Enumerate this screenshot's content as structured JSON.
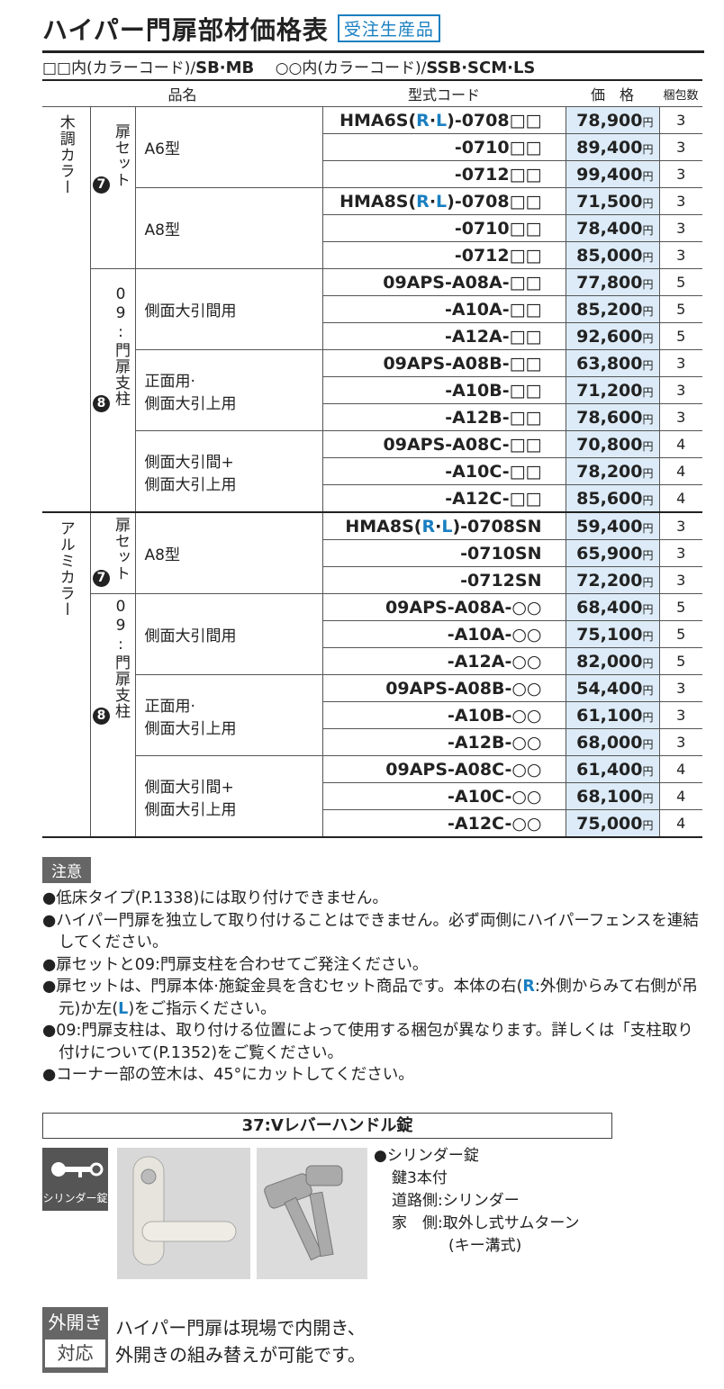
{
  "header": {
    "title": "ハイパー門扉部材価格表",
    "badge": "受注生産品"
  },
  "color_codes": [
    {
      "text": "□□内(カラーコード)/",
      "codes": "SB·MB"
    },
    {
      "text": "○○内(カラーコード)/",
      "codes": "SSB·SCM·LS"
    }
  ],
  "table": {
    "columns": {
      "name": "品名",
      "code": "型式コード",
      "price": "価　格",
      "pack": "梱包数"
    },
    "currency_unit": "円",
    "groups": [
      {
        "label": "木調カラー",
        "subgroups": [
          {
            "badge": "7",
            "label": "扉セット",
            "items": [
              {
                "name": [
                  "A6型"
                ],
                "rows": [
                  {
                    "code": [
                      "HMA6S(",
                      "R",
                      "·",
                      "L",
                      ")-0708□□"
                    ],
                    "price": "78,900",
                    "pack": "3"
                  },
                  {
                    "code": [
                      "-0710□□"
                    ],
                    "price": "89,400",
                    "pack": "3"
                  },
                  {
                    "code": [
                      "-0712□□"
                    ],
                    "price": "99,400",
                    "pack": "3"
                  }
                ]
              },
              {
                "name": [
                  "A8型"
                ],
                "rows": [
                  {
                    "code": [
                      "HMA8S(",
                      "R",
                      "·",
                      "L",
                      ")-0708□□"
                    ],
                    "price": "71,500",
                    "pack": "3"
                  },
                  {
                    "code": [
                      "-0710□□"
                    ],
                    "price": "78,400",
                    "pack": "3"
                  },
                  {
                    "code": [
                      "-0712□□"
                    ],
                    "price": "85,000",
                    "pack": "3"
                  }
                ]
              }
            ]
          },
          {
            "badge": "8",
            "label": "09:門扉支柱",
            "items": [
              {
                "name": [
                  "側面大引間用"
                ],
                "rows": [
                  {
                    "code": [
                      "09APS-A08A-□□"
                    ],
                    "price": "77,800",
                    "pack": "5"
                  },
                  {
                    "code": [
                      "-A10A-□□"
                    ],
                    "price": "85,200",
                    "pack": "5"
                  },
                  {
                    "code": [
                      "-A12A-□□"
                    ],
                    "price": "92,600",
                    "pack": "5"
                  }
                ]
              },
              {
                "name": [
                  "正面用·",
                  "側面大引上用"
                ],
                "rows": [
                  {
                    "code": [
                      "09APS-A08B-□□"
                    ],
                    "price": "63,800",
                    "pack": "3"
                  },
                  {
                    "code": [
                      "-A10B-□□"
                    ],
                    "price": "71,200",
                    "pack": "3"
                  },
                  {
                    "code": [
                      "-A12B-□□"
                    ],
                    "price": "78,600",
                    "pack": "3"
                  }
                ]
              },
              {
                "name": [
                  "側面大引間+",
                  "側面大引上用"
                ],
                "rows": [
                  {
                    "code": [
                      "09APS-A08C-□□"
                    ],
                    "price": "70,800",
                    "pack": "4"
                  },
                  {
                    "code": [
                      "-A10C-□□"
                    ],
                    "price": "78,200",
                    "pack": "4"
                  },
                  {
                    "code": [
                      "-A12C-□□"
                    ],
                    "price": "85,600",
                    "pack": "4"
                  }
                ]
              }
            ]
          }
        ]
      },
      {
        "label": "アルミカラー",
        "subgroups": [
          {
            "badge": "7",
            "label": "扉セット",
            "items": [
              {
                "name": [
                  "A8型"
                ],
                "rows": [
                  {
                    "code": [
                      "HMA8S(",
                      "R",
                      "·",
                      "L",
                      ")-0708SN"
                    ],
                    "price": "59,400",
                    "pack": "3"
                  },
                  {
                    "code": [
                      "-0710SN"
                    ],
                    "price": "65,900",
                    "pack": "3"
                  },
                  {
                    "code": [
                      "-0712SN"
                    ],
                    "price": "72,200",
                    "pack": "3"
                  }
                ]
              }
            ]
          },
          {
            "badge": "8",
            "label": "09:門扉支柱",
            "items": [
              {
                "name": [
                  "側面大引間用"
                ],
                "rows": [
                  {
                    "code": [
                      "09APS-A08A-○○"
                    ],
                    "price": "68,400",
                    "pack": "5"
                  },
                  {
                    "code": [
                      "-A10A-○○"
                    ],
                    "price": "75,100",
                    "pack": "5"
                  },
                  {
                    "code": [
                      "-A12A-○○"
                    ],
                    "price": "82,000",
                    "pack": "5"
                  }
                ]
              },
              {
                "name": [
                  "正面用·",
                  "側面大引上用"
                ],
                "rows": [
                  {
                    "code": [
                      "09APS-A08B-○○"
                    ],
                    "price": "54,400",
                    "pack": "3"
                  },
                  {
                    "code": [
                      "-A10B-○○"
                    ],
                    "price": "61,100",
                    "pack": "3"
                  },
                  {
                    "code": [
                      "-A12B-○○"
                    ],
                    "price": "68,000",
                    "pack": "3"
                  }
                ]
              },
              {
                "name": [
                  "側面大引間+",
                  "側面大引上用"
                ],
                "rows": [
                  {
                    "code": [
                      "09APS-A08C-○○"
                    ],
                    "price": "61,400",
                    "pack": "4"
                  },
                  {
                    "code": [
                      "-A10C-○○"
                    ],
                    "price": "68,100",
                    "pack": "4"
                  },
                  {
                    "code": [
                      "-A12C-○○"
                    ],
                    "price": "75,000",
                    "pack": "4"
                  }
                ]
              }
            ]
          }
        ]
      }
    ]
  },
  "notes": {
    "label": "注意",
    "items": [
      [
        "●低床タイプ(P.1338)には取り付けできません。"
      ],
      [
        "●ハイパー門扉を独立して取り付けることはできません。必ず両側にハイパーフェンスを連結してください。"
      ],
      [
        "●扉セットと09:門扉支柱を合わせてご発注ください。"
      ],
      [
        "●扉セットは、門扉本体·施錠金具を含むセット商品です。本体の右(",
        "R",
        ":外側からみて右側が吊元)か左(",
        "L",
        ")をご指示ください。"
      ],
      [
        "●09:門扉支柱は、取り付ける位置によって使用する梱包が異なります。詳しくは「支柱取り付けについて(P.1352)をご覧ください。"
      ],
      [
        "●コーナー部の笠木は、45°にカットしてください。"
      ]
    ]
  },
  "lock": {
    "title": "37:Vレバーハンドル錠",
    "icon_label": "シリンダー錠",
    "lines": [
      "●シリンダー錠",
      "鍵3本付",
      "道路側:シリンダー",
      "家　側:取外し式サムターン",
      "(キー溝式)"
    ]
  },
  "footer": {
    "badge": [
      "外開き",
      "対応"
    ],
    "lines": [
      "ハイパー門扉は現場で内開き、",
      "外開きの組み替えが可能です。"
    ]
  }
}
